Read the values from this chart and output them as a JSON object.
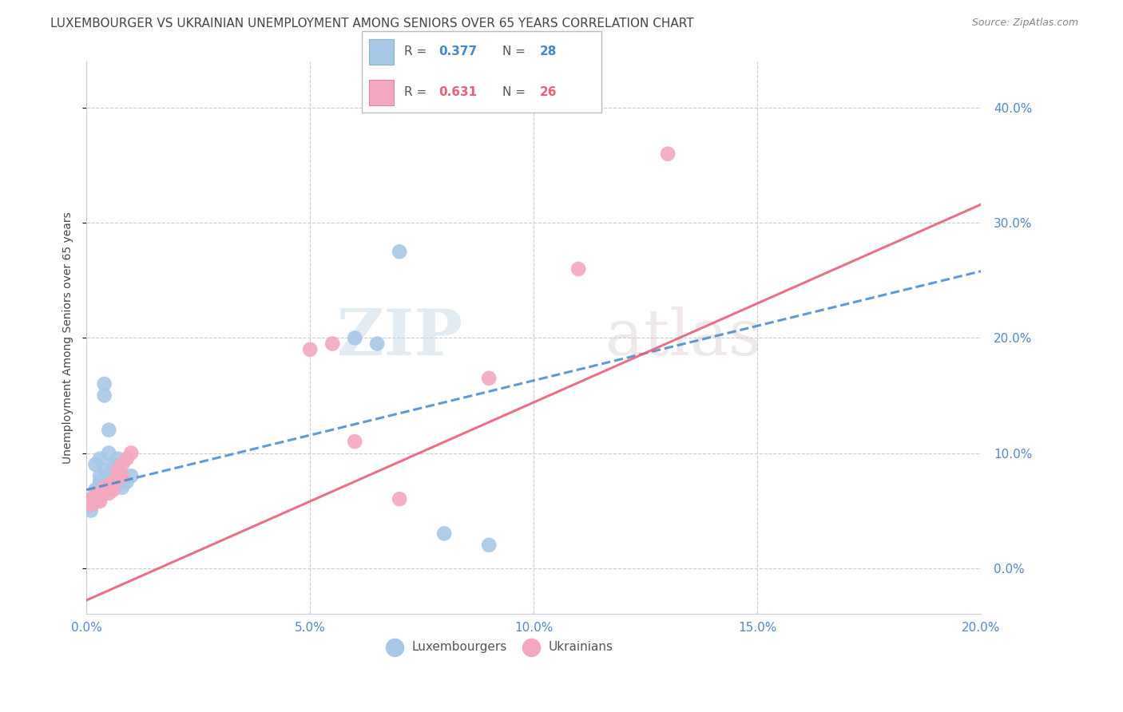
{
  "title": "LUXEMBOURGER VS UKRAINIAN UNEMPLOYMENT AMONG SENIORS OVER 65 YEARS CORRELATION CHART",
  "source": "Source: ZipAtlas.com",
  "ylabel": "Unemployment Among Seniors over 65 years",
  "watermark": "ZIPatlas",
  "xlim": [
    0.0,
    0.2
  ],
  "ylim": [
    -0.04,
    0.44
  ],
  "xticks": [
    0.0,
    0.05,
    0.1,
    0.15,
    0.2
  ],
  "yticks": [
    0.0,
    0.1,
    0.2,
    0.3,
    0.4
  ],
  "lux_color": "#a8c8e8",
  "ukr_color": "#f4a8c0",
  "lux_line_color": "#4488cc",
  "ukr_line_color": "#e8607a",
  "lux_R": 0.377,
  "lux_N": 28,
  "ukr_R": 0.631,
  "ukr_N": 26,
  "lux_points": [
    [
      0.001,
      0.05
    ],
    [
      0.001,
      0.06
    ],
    [
      0.002,
      0.068
    ],
    [
      0.002,
      0.058
    ],
    [
      0.002,
      0.09
    ],
    [
      0.003,
      0.075
    ],
    [
      0.003,
      0.095
    ],
    [
      0.003,
      0.07
    ],
    [
      0.003,
      0.08
    ],
    [
      0.004,
      0.16
    ],
    [
      0.004,
      0.15
    ],
    [
      0.004,
      0.085
    ],
    [
      0.005,
      0.1
    ],
    [
      0.005,
      0.08
    ],
    [
      0.005,
      0.12
    ],
    [
      0.006,
      0.09
    ],
    [
      0.006,
      0.085
    ],
    [
      0.007,
      0.085
    ],
    [
      0.007,
      0.095
    ],
    [
      0.008,
      0.075
    ],
    [
      0.008,
      0.07
    ],
    [
      0.009,
      0.075
    ],
    [
      0.01,
      0.08
    ],
    [
      0.06,
      0.2
    ],
    [
      0.065,
      0.195
    ],
    [
      0.07,
      0.275
    ],
    [
      0.08,
      0.03
    ],
    [
      0.09,
      0.02
    ]
  ],
  "ukr_points": [
    [
      0.001,
      0.055
    ],
    [
      0.001,
      0.06
    ],
    [
      0.002,
      0.062
    ],
    [
      0.002,
      0.058
    ],
    [
      0.003,
      0.065
    ],
    [
      0.003,
      0.058
    ],
    [
      0.003,
      0.06
    ],
    [
      0.004,
      0.07
    ],
    [
      0.004,
      0.068
    ],
    [
      0.005,
      0.065
    ],
    [
      0.005,
      0.072
    ],
    [
      0.006,
      0.068
    ],
    [
      0.006,
      0.075
    ],
    [
      0.007,
      0.08
    ],
    [
      0.007,
      0.085
    ],
    [
      0.008,
      0.09
    ],
    [
      0.008,
      0.08
    ],
    [
      0.009,
      0.095
    ],
    [
      0.01,
      0.1
    ],
    [
      0.05,
      0.19
    ],
    [
      0.055,
      0.195
    ],
    [
      0.06,
      0.11
    ],
    [
      0.07,
      0.06
    ],
    [
      0.09,
      0.165
    ],
    [
      0.11,
      0.26
    ],
    [
      0.13,
      0.36
    ]
  ],
  "background_color": "#ffffff",
  "grid_color": "#cccccc",
  "axis_color": "#5588cc",
  "title_color": "#444444",
  "title_fontsize": 11,
  "label_fontsize": 10,
  "tick_fontsize": 11,
  "lux_line_intercept": 0.068,
  "lux_line_slope": 0.95,
  "ukr_line_intercept": -0.028,
  "ukr_line_slope": 1.72
}
